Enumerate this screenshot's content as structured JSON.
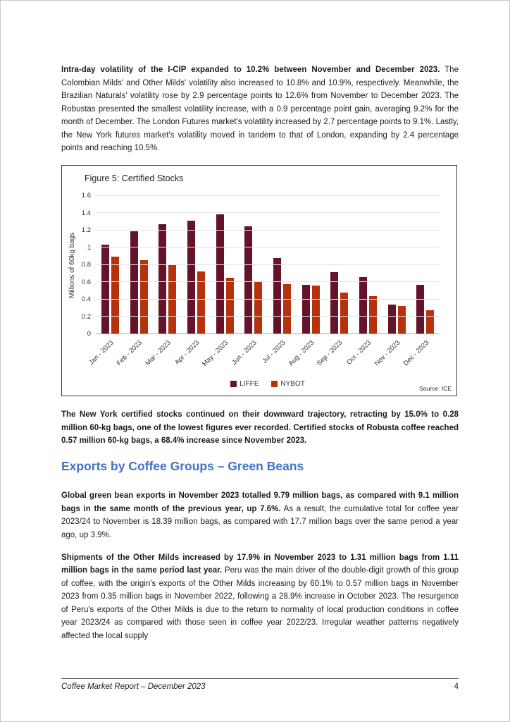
{
  "paragraphs": {
    "p1_bold": "Intra-day volatility of the I-CIP expanded to 10.2% between November and December 2023.",
    "p1_rest": "The Colombian Milds' and Other Milds' volatility also increased to 10.8% and 10.9%, respectively. Meanwhile, the Brazilian Naturals' volatility rose by 2.9 percentage points to 12.6% from November to December 2023. The Robustas presented the smallest volatility increase, with a 0.9 percentage point gain, averaging 9.2% for the month of December. The London Futures market's volatility increased by 2.7 percentage points to 9.1%.  Lastly, the New York futures market's volatility moved in tandem to that of London, expanding by 2.4 percentage points and reaching 10.5%.",
    "p2_bold": "The New York certified stocks continued on their downward trajectory, retracting by 15.0% to 0.28 million 60-kg bags, one of the lowest figures ever recorded. Certified stocks of Robusta coffee reached 0.57 million 60-kg bags, a 68.4% increase since November 2023.",
    "heading": "Exports by Coffee Groups – Green Beans",
    "p3_bold": "Global green bean exports in November 2023 totalled 9.79 million bags, as compared with 9.1 million bags in the same month of the previous year, up 7.6%.",
    "p3_rest": "As a result, the cumulative total for coffee year 2023/24 to November is 18.39 million bags, as compared with 17.7 million bags over the same period a year ago, up 3.9%.",
    "p4_bold": "Shipments of the Other Milds increased by 17.9% in November 2023 to 1.31 million bags from 1.11 million bags in the same period last year.",
    "p4_rest": "Peru was the main driver of the double-digit growth of this group of coffee, with the origin's exports of the Other Milds increasing by 60.1% to 0.57 million bags in November 2023 from 0.35 million bags in November 2022, following a 28.9% increase in October 2023.  The resurgence of Peru's exports of the Other Milds is due to the return to normality of local production conditions in coffee year 2023/24 as compared with those seen in coffee year 2022/23. Irregular weather patterns negatively affected the local supply"
  },
  "chart_data": {
    "type": "bar",
    "title": "Figure 5: Certified Stocks",
    "ylabel": "Millions of 60kg bags",
    "xlabel": "",
    "source": "Source: ICE",
    "categories": [
      "Jan - 2023",
      "Feb - 2023",
      "Mar - 2023",
      "Apr - 2023",
      "May - 2023",
      "Jun - 2023",
      "Jul - 2023",
      "Aug - 2023",
      "Sep - 2023",
      "Oct - 2023",
      "Nov - 2023",
      "Dec - 2023"
    ],
    "series": [
      {
        "name": "LIFFE",
        "color": "#65132a",
        "values": [
          1.04,
          1.19,
          1.27,
          1.31,
          1.39,
          1.25,
          0.88,
          0.57,
          0.72,
          0.66,
          0.34,
          0.57
        ]
      },
      {
        "name": "NYBOT",
        "color": "#b5320c",
        "values": [
          0.9,
          0.86,
          0.8,
          0.73,
          0.65,
          0.6,
          0.58,
          0.56,
          0.48,
          0.44,
          0.33,
          0.28
        ]
      }
    ],
    "ylim": [
      0,
      1.6
    ],
    "ytick_step": 0.2,
    "grid": true,
    "legend_position": "bottom"
  },
  "footer": {
    "left": "Coffee Market Report – December 2023",
    "page_number": "4"
  },
  "colors": {
    "heading_blue": "#4472c4",
    "liffe": "#65132a",
    "nybot": "#b5320c"
  }
}
